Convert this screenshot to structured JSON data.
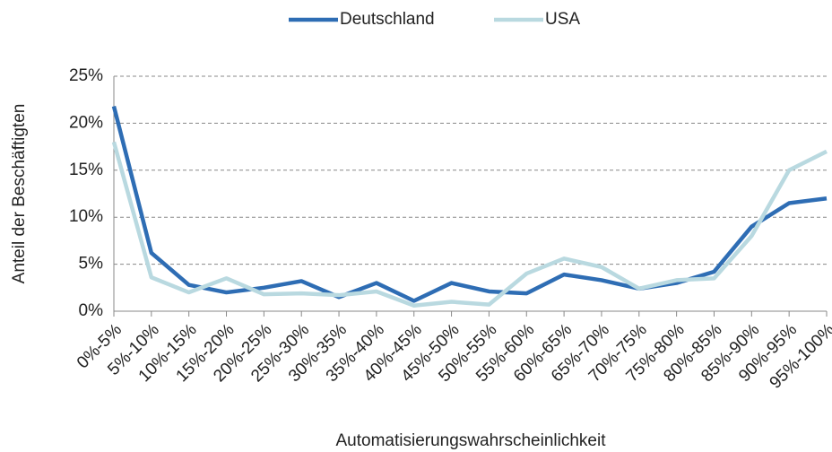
{
  "chart_data": {
    "type": "line",
    "x_label": "Automatisierungswahrscheinlichkeit",
    "y_label": "Anteil der Beschäftigten",
    "categories": [
      "0%-5%",
      "5%-10%",
      "10%-15%",
      "15%-20%",
      "20%-25%",
      "25%-30%",
      "30%-35%",
      "35%-40%",
      "40%-45%",
      "45%-50%",
      "50%-55%",
      "55%-60%",
      "60%-65%",
      "65%-70%",
      "70%-75%",
      "75%-80%",
      "80%-85%",
      "85%-90%",
      "90%-95%",
      "95%-100%"
    ],
    "series": [
      {
        "name": "Deutschland",
        "color": "#2e6db4",
        "values": [
          21.8,
          6.2,
          2.8,
          2.0,
          2.5,
          3.2,
          1.5,
          3.0,
          1.1,
          3.0,
          2.1,
          1.9,
          3.9,
          3.3,
          2.4,
          3.0,
          4.2,
          9.0,
          11.5,
          12.0
        ]
      },
      {
        "name": "USA",
        "color": "#b9d9e0",
        "values": [
          18.0,
          3.6,
          2.0,
          3.5,
          1.8,
          1.9,
          1.7,
          2.1,
          0.6,
          1.0,
          0.7,
          4.0,
          5.6,
          4.7,
          2.4,
          3.3,
          3.5,
          8.0,
          15.0,
          17.0
        ]
      }
    ],
    "ylim": [
      0,
      25
    ],
    "yticks": [
      {
        "value": 0,
        "label": "0%"
      },
      {
        "value": 5,
        "label": "5%"
      },
      {
        "value": 10,
        "label": "10%"
      },
      {
        "value": 15,
        "label": "15%"
      },
      {
        "value": 20,
        "label": "20%"
      },
      {
        "value": 25,
        "label": "25%"
      }
    ],
    "grid": true,
    "legend": "top"
  }
}
